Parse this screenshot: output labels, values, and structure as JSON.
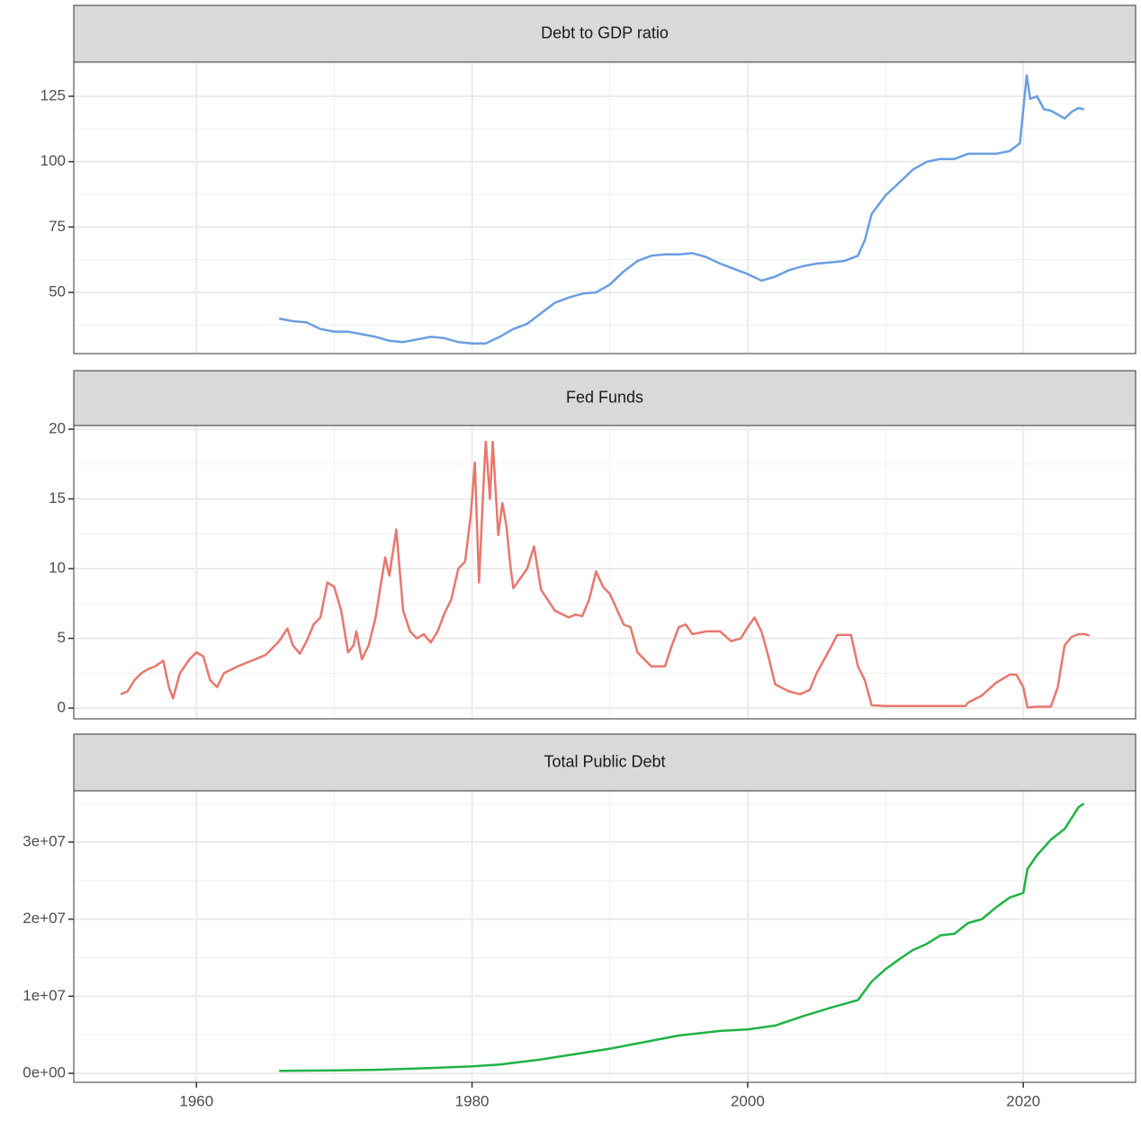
{
  "chart_data": {
    "type": "facet",
    "xlim": [
      1951.1,
      2028.15
    ],
    "xticks": [
      1960,
      1980,
      2000,
      2020
    ],
    "x_minor_ticks": [
      1970,
      1990,
      2010
    ],
    "grid": true,
    "panels": [
      {
        "type": "line",
        "title": "Debt to GDP ratio",
        "color": "#6a9ee3",
        "ylim": [
          26.6,
          138.07
        ],
        "yticks": [
          50,
          75,
          100,
          125
        ],
        "y_minor_ticks": [
          37.5,
          62.5,
          87.5,
          112.5,
          137.5
        ],
        "x": [
          1966,
          1967,
          1968,
          1969,
          1970,
          1971,
          1972,
          1973,
          1974,
          1975,
          1976,
          1977,
          1978,
          1979,
          1980,
          1981,
          1982,
          1983,
          1984,
          1985,
          1986,
          1987,
          1988,
          1989,
          1990,
          1991,
          1992,
          1993,
          1994,
          1995,
          1996,
          1997,
          1998,
          1999,
          2000,
          2001,
          2002,
          2003,
          2004,
          2005,
          2006,
          2007,
          2008,
          2008.5,
          2009,
          2010,
          2011,
          2012,
          2013,
          2014,
          2015,
          2016,
          2017,
          2018,
          2019,
          2019.75,
          2020.25,
          2020.5,
          2021,
          2021.5,
          2022,
          2022.5,
          2023,
          2023.5,
          2024,
          2024.4
        ],
        "values": [
          40,
          39,
          38.5,
          36,
          35,
          35,
          34,
          33,
          31.5,
          31,
          32,
          33,
          32.5,
          31,
          30.5,
          30.5,
          33,
          36,
          38,
          42,
          46,
          48,
          49.5,
          50,
          53,
          58,
          62,
          64,
          64.5,
          64.5,
          65,
          63.5,
          61,
          59,
          57,
          54.5,
          56,
          58.5,
          60,
          61,
          61.5,
          62,
          64,
          70,
          80,
          87,
          92,
          97,
          100,
          101,
          101,
          103,
          103,
          103,
          104,
          107,
          133,
          124,
          125,
          120,
          119.5,
          118,
          116.5,
          119,
          120.5,
          120
        ]
      },
      {
        "type": "line",
        "title": "Fed Funds",
        "color": "#e8776d",
        "ylim": [
          -0.77,
          20.26
        ],
        "yticks": [
          0,
          5,
          10,
          15,
          20
        ],
        "y_minor_ticks": [
          2.5,
          7.5,
          12.5,
          17.5
        ],
        "x": [
          1954.5,
          1955,
          1955.5,
          1956,
          1956.5,
          1957,
          1957.6,
          1958,
          1958.3,
          1958.8,
          1959.5,
          1960,
          1960.5,
          1961,
          1961.5,
          1962,
          1963,
          1964,
          1965,
          1966,
          1966.6,
          1967,
          1967.5,
          1968,
          1968.5,
          1969,
          1969.5,
          1970,
          1970.5,
          1971,
          1971.4,
          1971.6,
          1972,
          1972.5,
          1973,
          1973.4,
          1973.7,
          1974,
          1974.5,
          1975,
          1975.5,
          1976,
          1976.5,
          1977,
          1977.5,
          1978,
          1978.5,
          1979,
          1979.5,
          1979.9,
          1980.2,
          1980.5,
          1980.9,
          1981,
          1981.3,
          1981.5,
          1981.9,
          1982.2,
          1982.5,
          1982.8,
          1983,
          1984,
          1984.5,
          1985,
          1986,
          1987,
          1987.5,
          1988,
          1988.5,
          1989,
          1989.5,
          1990,
          1991,
          1991.5,
          1992,
          1993,
          1994,
          1994.5,
          1995,
          1995.5,
          1996,
          1997,
          1998,
          1998.8,
          1999.5,
          2000,
          2000.5,
          2001,
          2001.5,
          2002,
          2003,
          2003.8,
          2004.5,
          2005,
          2006,
          2006.5,
          2007.5,
          2008,
          2008.5,
          2009,
          2010,
          2012,
          2015.8,
          2016,
          2017,
          2018,
          2019,
          2019.5,
          2020,
          2020.3,
          2021,
          2022,
          2022.5,
          2023,
          2023.5,
          2024,
          2024.5,
          2024.8
        ],
        "values": [
          1.0,
          1.2,
          2.0,
          2.5,
          2.8,
          3.0,
          3.4,
          1.5,
          0.7,
          2.5,
          3.5,
          4.0,
          3.7,
          2.0,
          1.5,
          2.5,
          3.0,
          3.4,
          3.8,
          4.8,
          5.7,
          4.5,
          3.9,
          4.8,
          6.0,
          6.5,
          9.0,
          8.7,
          7.0,
          4.0,
          4.5,
          5.5,
          3.5,
          4.5,
          6.5,
          9.0,
          10.8,
          9.5,
          12.8,
          7.0,
          5.5,
          5.0,
          5.3,
          4.7,
          5.5,
          6.8,
          7.8,
          10.0,
          10.5,
          13.8,
          17.6,
          9.0,
          17.5,
          19.1,
          15.0,
          19.1,
          12.4,
          14.7,
          13.0,
          10.0,
          8.6,
          10.0,
          11.6,
          8.5,
          7.0,
          6.5,
          6.7,
          6.6,
          7.8,
          9.8,
          8.7,
          8.2,
          6.0,
          5.8,
          4.0,
          3.0,
          3.0,
          4.5,
          5.8,
          6.0,
          5.3,
          5.5,
          5.5,
          4.8,
          5.0,
          5.8,
          6.5,
          5.5,
          3.7,
          1.7,
          1.2,
          1.0,
          1.3,
          2.5,
          4.3,
          5.25,
          5.25,
          3.0,
          2.0,
          0.2,
          0.15,
          0.15,
          0.15,
          0.4,
          0.9,
          1.8,
          2.4,
          2.4,
          1.5,
          0.05,
          0.1,
          0.1,
          1.5,
          4.5,
          5.1,
          5.3,
          5.3,
          5.2
        ]
      },
      {
        "type": "line",
        "title": "Total Public Debt",
        "color": "#1fb344",
        "ylim": [
          -1167000,
          36650000
        ],
        "yticks": [
          {
            "value": 0,
            "label": "0e+00"
          },
          {
            "value": 10000000,
            "label": "1e+07"
          },
          {
            "value": 20000000,
            "label": "2e+07"
          },
          {
            "value": 30000000,
            "label": "3e+07"
          }
        ],
        "y_minor_ticks": [
          5000000,
          15000000,
          25000000,
          35000000
        ],
        "x": [
          1966,
          1970,
          1973,
          1977,
          1980,
          1982,
          1985,
          1990,
          1995,
          1998,
          2000,
          2002,
          2004,
          2006,
          2008,
          2009,
          2010,
          2011,
          2012,
          2013,
          2014,
          2015,
          2016,
          2017,
          2018,
          2019,
          2020,
          2020.3,
          2021,
          2022,
          2023,
          2024,
          2024.4
        ],
        "values": [
          320000,
          370000,
          460000,
          690000,
          900000,
          1140000,
          1800000,
          3200000,
          4900000,
          5500000,
          5700000,
          6200000,
          7400000,
          8500000,
          9500000,
          11900000,
          13500000,
          14800000,
          16000000,
          16800000,
          17900000,
          18100000,
          19500000,
          20000000,
          21500000,
          22800000,
          23400000,
          26500000,
          28300000,
          30300000,
          31700000,
          34500000,
          35000000
        ]
      }
    ]
  }
}
